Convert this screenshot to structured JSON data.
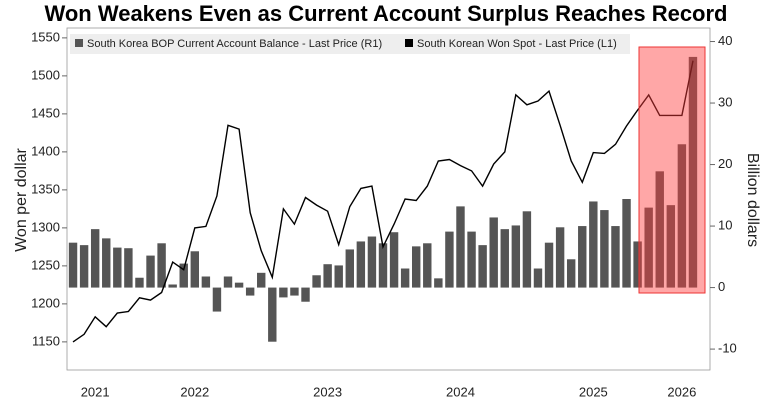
{
  "chart_data": {
    "type": "bar",
    "title": "Won Weakens Even as Current Account Surplus Reaches Record",
    "ylabel": "Won per dollar",
    "y2label": "Billion dollars",
    "categories": [
      null,
      null,
      "2021",
      null,
      null,
      null,
      null,
      null,
      null,
      null,
      null,
      "2022",
      null,
      null,
      null,
      null,
      null,
      null,
      null,
      null,
      null,
      null,
      null,
      "2023",
      null,
      null,
      null,
      null,
      null,
      null,
      null,
      null,
      null,
      null,
      null,
      "2024",
      null,
      null,
      null,
      null,
      null,
      null,
      null,
      null,
      null,
      null,
      null,
      "2025",
      null,
      null,
      null,
      null,
      null,
      null,
      null,
      "2026",
      null
    ],
    "series": [
      {
        "name": "South Korea BOP Current Account Balance - Last Price (R1)",
        "type": "bar",
        "axis": "y2",
        "color": "#555555",
        "values": [
          7.3,
          6.9,
          9.5,
          8,
          6.5,
          6.4,
          1.6,
          5.2,
          7.2,
          0.5,
          3.9,
          5.9,
          1.8,
          -3.9,
          1.8,
          0.8,
          -1.3,
          2.4,
          -8.8,
          -1.6,
          -1.3,
          -2.3,
          2,
          3.8,
          3.6,
          6.2,
          7.5,
          8.3,
          7.2,
          9,
          3.1,
          6.7,
          7.2,
          1.5,
          9.1,
          13.2,
          9.1,
          6.9,
          11.4,
          9.5,
          10.1,
          12.4,
          3.1,
          7.3,
          9.8,
          4.6,
          10,
          14,
          12.6,
          10,
          14.4,
          7.5,
          13,
          18.9,
          13.4,
          23.3,
          37.5
        ]
      },
      {
        "name": "South Korean Won Spot - Last Price (L1)",
        "type": "line",
        "axis": "y",
        "color": "#000000",
        "values": [
          1150,
          1160,
          1183,
          1170,
          1188,
          1190,
          1208,
          1205,
          1215,
          1255,
          1245,
          1300,
          1302,
          1342,
          1435,
          1430,
          1320,
          1270,
          1235,
          1325,
          1305,
          1340,
          1330,
          1322,
          1278,
          1328,
          1352,
          1355,
          1275,
          1305,
          1338,
          1336,
          1355,
          1388,
          1390,
          1382,
          1375,
          1355,
          1384,
          1400,
          1475,
          1462,
          1467,
          1480,
          1435,
          1388,
          1360,
          1399,
          1398,
          1410,
          1434,
          1455,
          1475,
          1448,
          1448,
          1448,
          1520
        ]
      }
    ],
    "ylim": [
      1113,
      1563
    ],
    "yticks": [
      1150,
      1200,
      1250,
      1300,
      1350,
      1400,
      1450,
      1500,
      1550
    ],
    "y2lim": [
      -13.4,
      42.2
    ],
    "y2ticks": [
      -10,
      0,
      10,
      20,
      30,
      40
    ]
  }
}
